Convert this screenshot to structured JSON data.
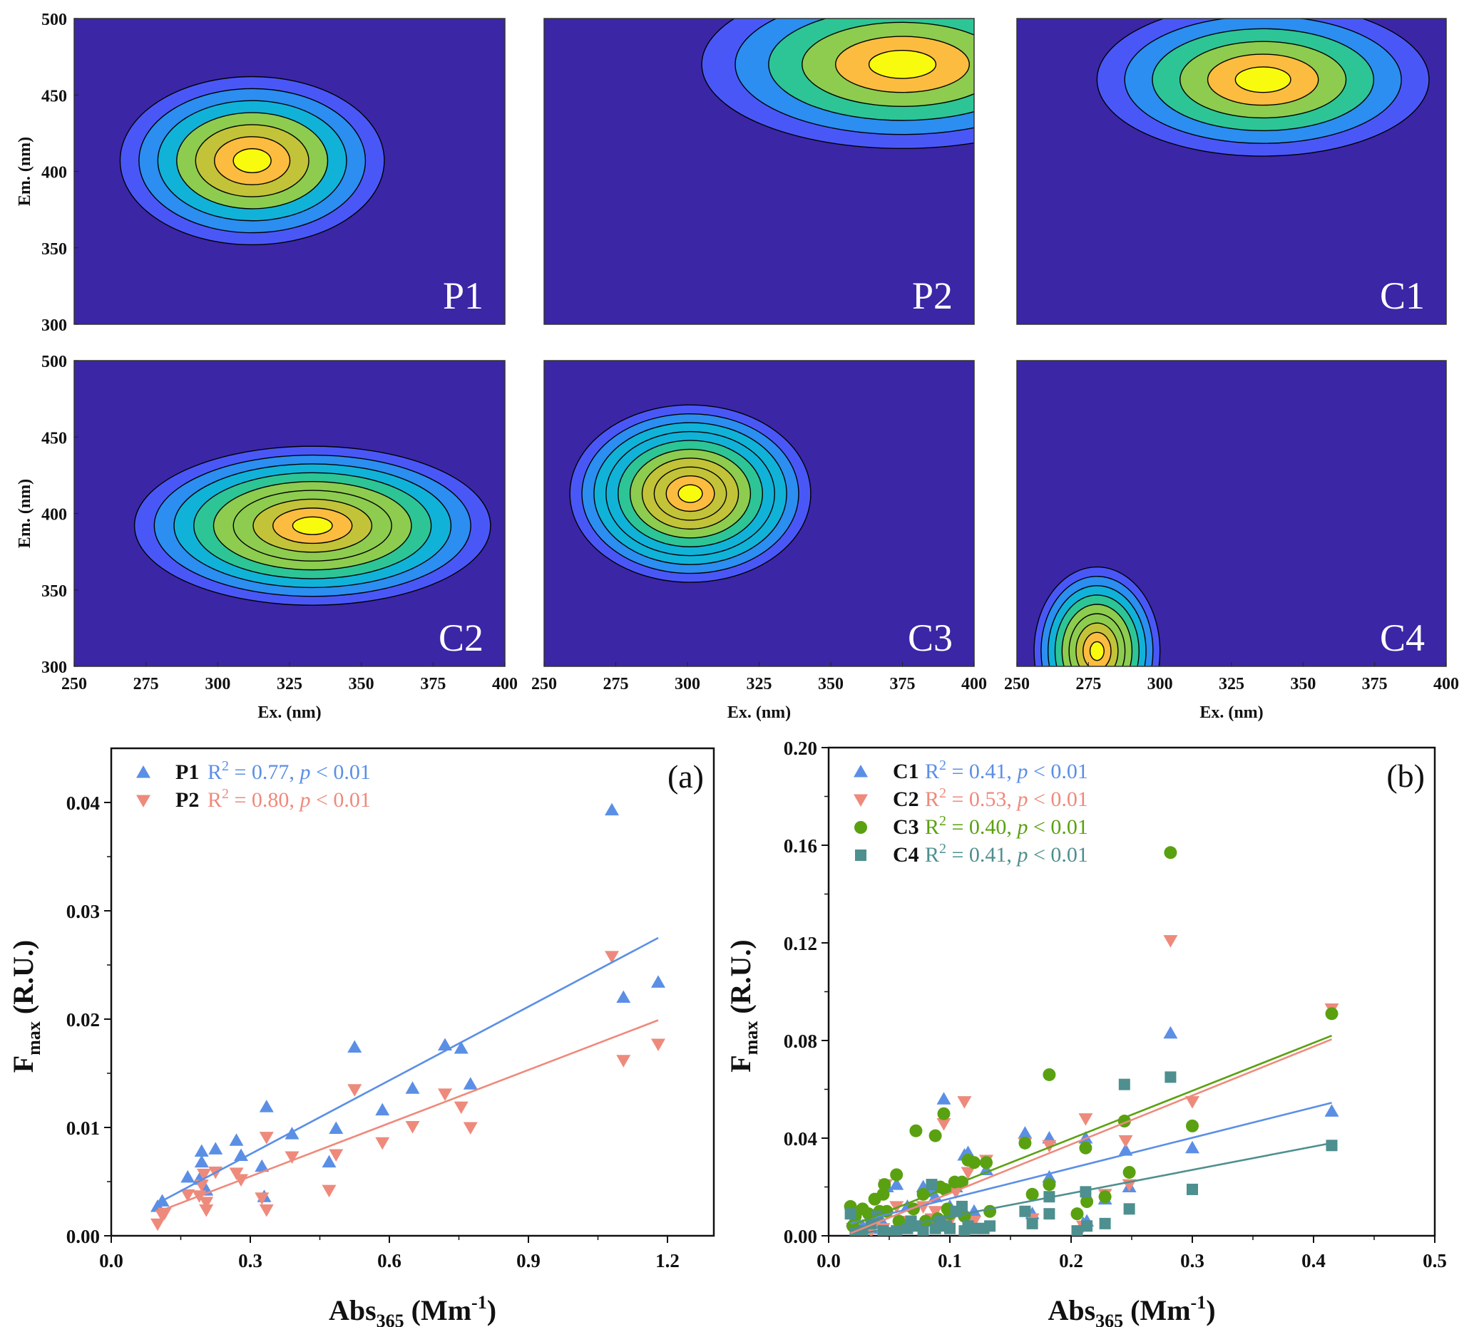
{
  "figure": {
    "contour_colors": [
      "#3b26a6",
      "#4a57f7",
      "#2b8ef0",
      "#11b2d8",
      "#2dc595",
      "#8dcc4f",
      "#c2c338",
      "#fcbc3f",
      "#f9fb0f"
    ],
    "contour_line_color": "#000000",
    "panel_background": "#3b26a6"
  },
  "chart_data": [
    {
      "type": "heatmap",
      "id": "P1",
      "title": "P1",
      "xlabel": "",
      "ylabel": "Em. (nm)",
      "xlim": [
        250,
        400
      ],
      "ylim": [
        300,
        500
      ],
      "xticks": [],
      "yticks": [
        "300",
        "350",
        "400",
        "450",
        "500"
      ],
      "peak": {
        "ex": 312,
        "em": 407
      },
      "spread": {
        "ex": 46,
        "em": 55
      },
      "levels": 7
    },
    {
      "type": "heatmap",
      "id": "P2",
      "title": "P2",
      "xlabel": "",
      "ylabel": "",
      "xlim": [
        250,
        400
      ],
      "ylim": [
        300,
        500
      ],
      "xticks": [],
      "yticks": [],
      "peak": {
        "ex": 375,
        "em": 470
      },
      "spread": {
        "ex": 70,
        "em": 55
      },
      "levels": 6
    },
    {
      "type": "heatmap",
      "id": "C1",
      "title": "C1",
      "xlabel": "",
      "ylabel": "",
      "xlim": [
        250,
        400
      ],
      "ylim": [
        300,
        500
      ],
      "xticks": [],
      "yticks": [],
      "peak": {
        "ex": 336,
        "em": 460
      },
      "spread": {
        "ex": 58,
        "em": 50
      },
      "levels": 6
    },
    {
      "type": "heatmap",
      "id": "C2",
      "title": "C2",
      "xlabel": "Ex. (nm)",
      "ylabel": "Em. (nm)",
      "xlim": [
        250,
        400
      ],
      "ylim": [
        300,
        500
      ],
      "xticks": [
        "250",
        "275",
        "300",
        "325",
        "350",
        "375",
        "400"
      ],
      "yticks": [
        "300",
        "350",
        "400",
        "450",
        "500"
      ],
      "peak": {
        "ex": 333,
        "em": 392
      },
      "spread": {
        "ex": 62,
        "em": 52
      },
      "levels": 9
    },
    {
      "type": "heatmap",
      "id": "C3",
      "title": "C3",
      "xlabel": "Ex. (nm)",
      "ylabel": "",
      "xlim": [
        250,
        400
      ],
      "ylim": [
        300,
        500
      ],
      "xticks": [
        "250",
        "275",
        "300",
        "325",
        "350",
        "375",
        "400"
      ],
      "yticks": [],
      "peak": {
        "ex": 301,
        "em": 413
      },
      "spread": {
        "ex": 42,
        "em": 58
      },
      "levels": 10
    },
    {
      "type": "heatmap",
      "id": "C4",
      "title": "C4",
      "xlabel": "Ex. (nm)",
      "ylabel": "",
      "xlim": [
        250,
        400
      ],
      "ylim": [
        300,
        500
      ],
      "xticks": [
        "250",
        "275",
        "300",
        "325",
        "350",
        "375",
        "400"
      ],
      "yticks": [],
      "peak": {
        "ex": 278,
        "em": 310
      },
      "spread": {
        "ex": 22,
        "em": 55
      },
      "levels": 9
    },
    {
      "type": "scatter",
      "id": "a",
      "corner_label": "(a)",
      "title": "",
      "xlabel": "Abs365 (Mm-1)",
      "xlabel_parts": {
        "base": "Abs",
        "sub": "365",
        "rest": " (Mm",
        "sup": "-1",
        "close": ")"
      },
      "ylabel": "Fmax (R.U.)",
      "ylabel_parts": {
        "base": "F",
        "sub": "max",
        "rest": " (R.U.)"
      },
      "xlim": [
        0,
        1.3
      ],
      "ylim": [
        0,
        0.045
      ],
      "xticks": [
        0.0,
        0.3,
        0.6,
        0.9,
        1.2
      ],
      "xtick_labels": [
        "0.0",
        "0.3",
        "0.6",
        "0.9",
        "1.2"
      ],
      "yticks": [
        0.0,
        0.01,
        0.02,
        0.03,
        0.04
      ],
      "ytick_labels": [
        "0.00",
        "0.01",
        "0.02",
        "0.03",
        "0.04"
      ],
      "legend_position": "top-left",
      "series": [
        {
          "name": "P1",
          "marker": "triangle-up",
          "color": "#5b8fe6",
          "stat": "R² = 0.77, p < 0.01",
          "stat_parts": {
            "r": "R",
            "sup": "2",
            "eq": " = 0.77, ",
            "p": "p",
            "tail": " < 0.01"
          },
          "fit": {
            "x": [
              0.1,
              1.18
            ],
            "y": [
              0.003,
              0.0275
            ]
          },
          "x": [
            0.1,
            0.11,
            0.165,
            0.19,
            0.195,
            0.195,
            0.205,
            0.225,
            0.27,
            0.28,
            0.325,
            0.33,
            0.335,
            0.39,
            0.47,
            0.485,
            0.525,
            0.585,
            0.65,
            0.72,
            0.755,
            0.775,
            1.08,
            1.105,
            1.18
          ],
          "y": [
            0.0027,
            0.0032,
            0.0054,
            0.0052,
            0.0068,
            0.0078,
            0.0042,
            0.008,
            0.0088,
            0.0074,
            0.0064,
            0.0036,
            0.0119,
            0.0094,
            0.0068,
            0.0099,
            0.0174,
            0.0116,
            0.0136,
            0.0176,
            0.0173,
            0.014,
            0.0393,
            0.022,
            0.0234
          ]
        },
        {
          "name": "P2",
          "marker": "triangle-down",
          "color": "#ee8a7c",
          "stat": "R² = 0.80, p < 0.01",
          "stat_parts": {
            "r": "R",
            "sup": "2",
            "eq": " = 0.80, ",
            "p": "p",
            "tail": " < 0.01"
          },
          "fit": {
            "x": [
              0.1,
              1.18
            ],
            "y": [
              0.0022,
              0.0199
            ]
          },
          "x": [
            0.1,
            0.11,
            0.115,
            0.165,
            0.19,
            0.195,
            0.2,
            0.205,
            0.205,
            0.225,
            0.27,
            0.28,
            0.325,
            0.335,
            0.335,
            0.39,
            0.47,
            0.485,
            0.525,
            0.585,
            0.65,
            0.72,
            0.755,
            0.775,
            1.08,
            1.105,
            1.18
          ],
          "y": [
            0.0011,
            0.0019,
            0.0021,
            0.0038,
            0.0037,
            0.0047,
            0.0057,
            0.0031,
            0.0024,
            0.0059,
            0.0058,
            0.0052,
            0.0035,
            0.0091,
            0.0024,
            0.0073,
            0.0042,
            0.0075,
            0.0135,
            0.0086,
            0.0101,
            0.0131,
            0.0119,
            0.01,
            0.0258,
            0.0162,
            0.0177
          ]
        }
      ]
    },
    {
      "type": "scatter",
      "id": "b",
      "corner_label": "(b)",
      "title": "",
      "xlabel": "Abs365 (Mm-1)",
      "xlabel_parts": {
        "base": "Abs",
        "sub": "365",
        "rest": " (Mm",
        "sup": "-1",
        "close": ")"
      },
      "ylabel": "Fmax (R.U.)",
      "ylabel_parts": {
        "base": "F",
        "sub": "max",
        "rest": " (R.U.)"
      },
      "xlim": [
        0,
        0.5
      ],
      "ylim": [
        0,
        0.2
      ],
      "xticks": [
        0.0,
        0.1,
        0.2,
        0.3,
        0.4,
        0.5
      ],
      "xtick_labels": [
        "0.0",
        "0.1",
        "0.2",
        "0.3",
        "0.4",
        "0.5"
      ],
      "yticks": [
        0.0,
        0.04,
        0.08,
        0.12,
        0.16,
        0.2
      ],
      "ytick_labels": [
        "0.00",
        "0.04",
        "0.08",
        "0.12",
        "0.16",
        "0.20"
      ],
      "legend_position": "top-left",
      "series": [
        {
          "name": "C1",
          "marker": "triangle-up",
          "color": "#5b8fe6",
          "stat": "R² = 0.41, p < 0.01",
          "stat_parts": {
            "r": "R",
            "sup": "2",
            "eq": " = 0.41, ",
            "p": "p",
            "tail": " < 0.01"
          },
          "fit": {
            "x": [
              0.018,
              0.415
            ],
            "y": [
              0.005,
              0.0545
            ]
          },
          "x": [
            0.02,
            0.028,
            0.035,
            0.045,
            0.048,
            0.056,
            0.065,
            0.078,
            0.085,
            0.088,
            0.095,
            0.1,
            0.105,
            0.112,
            0.115,
            0.12,
            0.13,
            0.162,
            0.168,
            0.182,
            0.182,
            0.21,
            0.212,
            0.213,
            0.228,
            0.245,
            0.248,
            0.282,
            0.3,
            0.415
          ],
          "y": [
            0.006,
            0.004,
            0.003,
            0.005,
            0.02,
            0.021,
            0.012,
            0.02,
            0.018,
            0.016,
            0.056,
            0.012,
            0.02,
            0.033,
            0.034,
            0.01,
            0.027,
            0.042,
            0.009,
            0.04,
            0.024,
            0.005,
            0.04,
            0.006,
            0.015,
            0.035,
            0.02,
            0.083,
            0.036,
            0.051
          ]
        },
        {
          "name": "C2",
          "marker": "triangle-down",
          "color": "#ee8a7c",
          "stat": "R² = 0.53, p < 0.01",
          "stat_parts": {
            "r": "R",
            "sup": "2",
            "eq": " = 0.53, ",
            "p": "p",
            "tail": " < 0.01"
          },
          "fit": {
            "x": [
              0.018,
              0.415
            ],
            "y": [
              0.001,
              0.0805
            ]
          },
          "x": [
            0.02,
            0.028,
            0.035,
            0.045,
            0.047,
            0.056,
            0.065,
            0.078,
            0.085,
            0.088,
            0.095,
            0.1,
            0.105,
            0.112,
            0.115,
            0.12,
            0.13,
            0.162,
            0.168,
            0.182,
            0.21,
            0.212,
            0.228,
            0.245,
            0.248,
            0.282,
            0.3,
            0.415
          ],
          "y": [
            0.003,
            0.002,
            0.002,
            0.003,
            0.021,
            0.012,
            0.006,
            0.012,
            0.007,
            0.01,
            0.046,
            0.006,
            0.018,
            0.055,
            0.026,
            0.006,
            0.031,
            0.038,
            0.007,
            0.037,
            0.004,
            0.048,
            0.017,
            0.039,
            0.021,
            0.121,
            0.055,
            0.093
          ]
        },
        {
          "name": "C3",
          "marker": "circle",
          "color": "#5aa111",
          "stat": "R² = 0.40, p < 0.01",
          "stat_parts": {
            "r": "R",
            "sup": "2",
            "eq": " = 0.40, ",
            "p": "p",
            "tail": " < 0.01"
          },
          "fit": {
            "x": [
              0.018,
              0.415
            ],
            "y": [
              0.004,
              0.082
            ]
          },
          "x": [
            0.018,
            0.02,
            0.022,
            0.028,
            0.033,
            0.038,
            0.042,
            0.045,
            0.046,
            0.048,
            0.056,
            0.058,
            0.07,
            0.072,
            0.078,
            0.08,
            0.088,
            0.09,
            0.092,
            0.095,
            0.096,
            0.098,
            0.1,
            0.104,
            0.11,
            0.112,
            0.115,
            0.12,
            0.13,
            0.133,
            0.162,
            0.168,
            0.182,
            0.182,
            0.205,
            0.212,
            0.213,
            0.228,
            0.244,
            0.248,
            0.282,
            0.3,
            0.415
          ],
          "y": [
            0.012,
            0.004,
            0.008,
            0.011,
            0.009,
            0.015,
            0.01,
            0.017,
            0.021,
            0.01,
            0.025,
            0.006,
            0.011,
            0.043,
            0.017,
            0.006,
            0.041,
            0.007,
            0.02,
            0.05,
            0.019,
            0.011,
            0.009,
            0.022,
            0.022,
            0.008,
            0.031,
            0.03,
            0.03,
            0.01,
            0.038,
            0.017,
            0.066,
            0.021,
            0.009,
            0.036,
            0.014,
            0.016,
            0.047,
            0.026,
            0.157,
            0.045,
            0.091
          ]
        },
        {
          "name": "C4",
          "marker": "square",
          "color": "#4e8f8f",
          "stat": "R² = 0.41, p < 0.01",
          "stat_parts": {
            "r": "R",
            "sup": "2",
            "eq": " = 0.41, ",
            "p": "p",
            "tail": " < 0.01"
          },
          "fit": {
            "x": [
              0.018,
              0.415
            ],
            "y": [
              0.0,
              0.038
            ]
          },
          "x": [
            0.018,
            0.022,
            0.028,
            0.035,
            0.04,
            0.045,
            0.048,
            0.056,
            0.065,
            0.068,
            0.072,
            0.078,
            0.085,
            0.088,
            0.092,
            0.097,
            0.1,
            0.105,
            0.11,
            0.112,
            0.115,
            0.12,
            0.128,
            0.133,
            0.162,
            0.168,
            0.182,
            0.182,
            0.205,
            0.212,
            0.213,
            0.228,
            0.244,
            0.248,
            0.282,
            0.3,
            0.415
          ],
          "y": [
            0.009,
            0.001,
            0.002,
            0.005,
            0.008,
            0.002,
            0.001,
            0.002,
            0.003,
            0.006,
            0.004,
            0.002,
            0.021,
            0.003,
            0.006,
            0.004,
            0.003,
            0.01,
            0.012,
            0.002,
            0.004,
            0.003,
            0.003,
            0.004,
            0.01,
            0.005,
            0.016,
            0.009,
            0.002,
            0.018,
            0.004,
            0.005,
            0.062,
            0.011,
            0.065,
            0.019,
            0.037
          ]
        }
      ]
    }
  ]
}
